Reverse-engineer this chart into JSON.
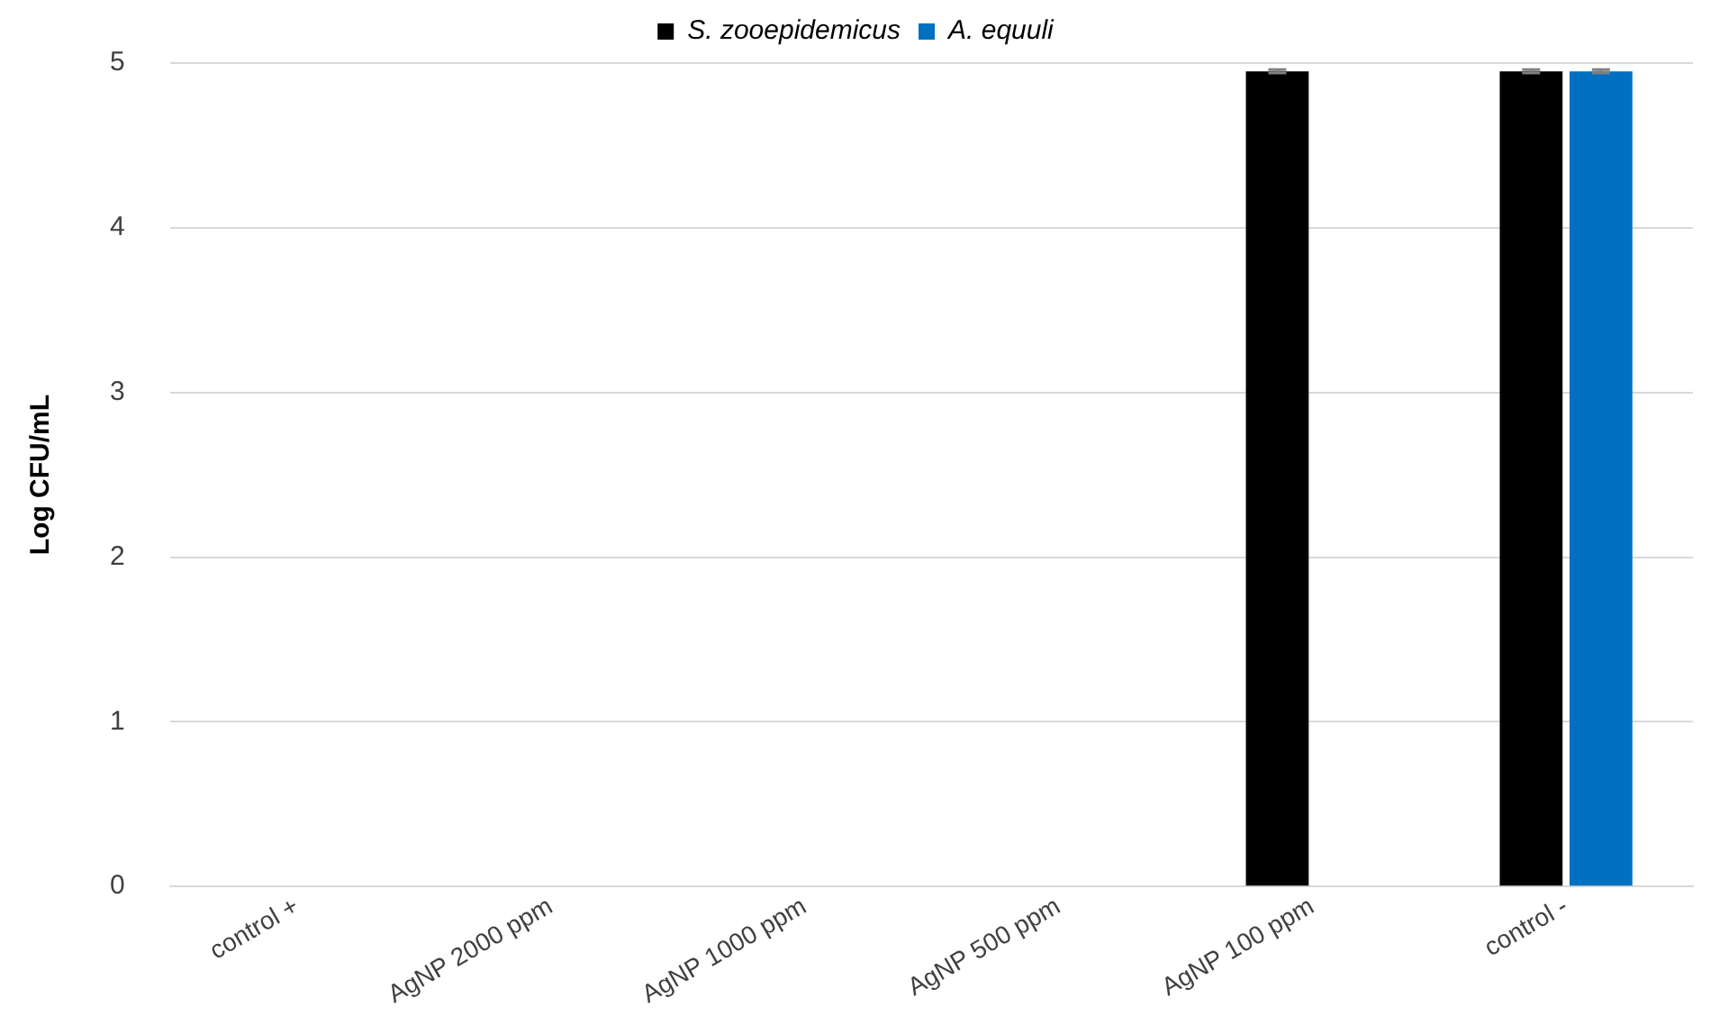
{
  "chart_data": {
    "type": "bar",
    "ylabel": "Log CFU/mL",
    "categories": [
      "control +",
      "AgNP 2000 ppm",
      "AgNP 1000 ppm",
      "AgNP 500 ppm",
      "AgNP 100 ppm",
      "control -"
    ],
    "series": [
      {
        "name": "S. zooepidemicus",
        "color": "#000000",
        "values": [
          0,
          0,
          0,
          0,
          4.95,
          4.95
        ],
        "errors": [
          null,
          null,
          null,
          null,
          0.01,
          0.01
        ]
      },
      {
        "name": "A. equuli",
        "color": "#0070c0",
        "values": [
          0,
          0,
          0,
          0,
          0,
          4.95
        ],
        "errors": [
          null,
          null,
          null,
          null,
          null,
          0.01
        ]
      }
    ],
    "ylim": [
      0,
      5
    ],
    "yticks": [
      0,
      1,
      2,
      3,
      4,
      5
    ],
    "grid": "y",
    "legend": "top"
  }
}
